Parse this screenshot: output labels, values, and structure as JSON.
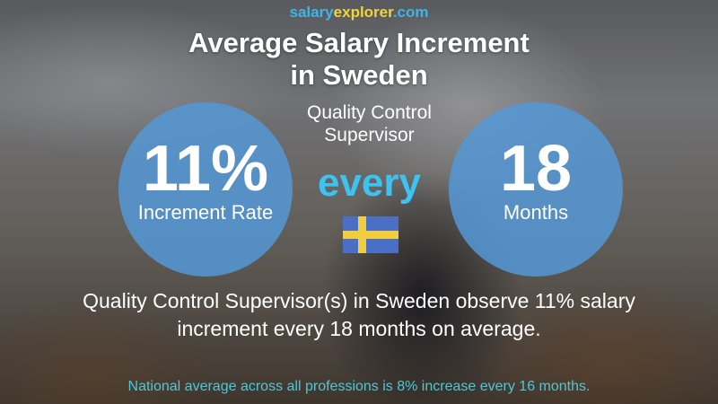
{
  "brand": {
    "part1": "salary",
    "part2": "explorer",
    "part3": ".com"
  },
  "header": {
    "title_line1": "Average Salary Increment",
    "title_line2": "in Sweden",
    "job_line1": "Quality Control",
    "job_line2": "Supervisor"
  },
  "left_circle": {
    "value": "11%",
    "label": "Increment Rate"
  },
  "connector": "every",
  "right_circle": {
    "value": "18",
    "label": "Months"
  },
  "flag": {
    "country": "Sweden",
    "colors": {
      "blue": "#4a6fc4",
      "yellow": "#f3cd3e"
    }
  },
  "description": {
    "line1": "Quality Control Supervisor(s) in Sweden observe 11% salary",
    "line2": "increment every 18 months on average."
  },
  "footer": {
    "national_average": "National average across all professions is 8% increase every 16 months."
  },
  "colors": {
    "circle": "#5498d6",
    "every": "#3cc3f2",
    "footer_text": "#4ec7d6",
    "brand_blue": "#3fb4e8",
    "brand_yellow": "#f2d43a"
  }
}
